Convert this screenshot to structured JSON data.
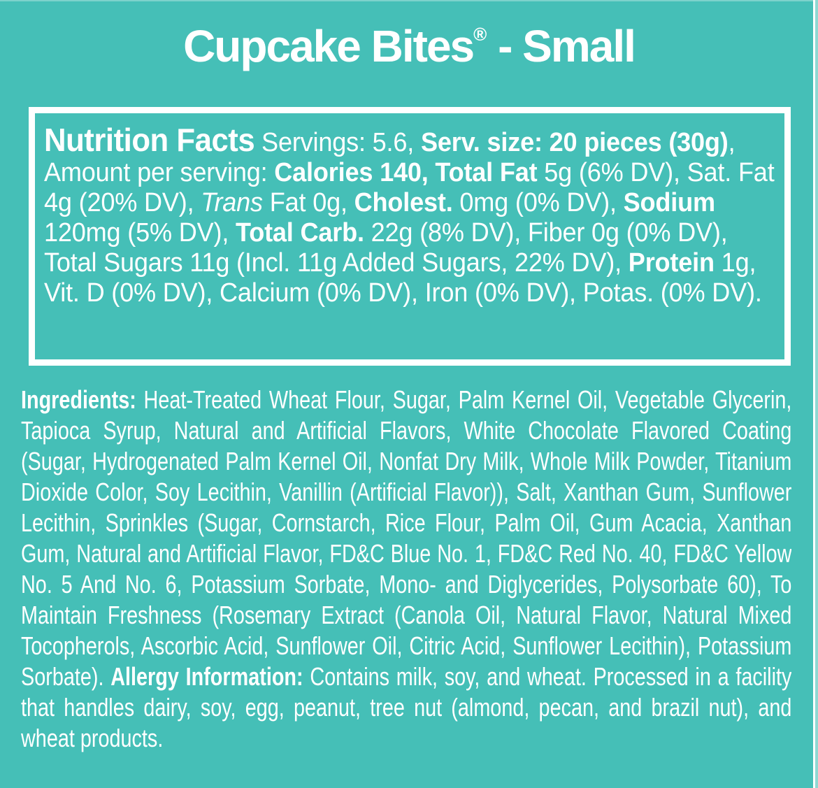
{
  "colors": {
    "background": "#45BFB7",
    "text": "#FFFFFF",
    "edge-sliver": "#8FD8D2"
  },
  "title": {
    "name": "Cupcake Bites",
    "registered_mark": "®",
    "suffix": " - Small"
  },
  "nutrition_facts": {
    "runs": [
      {
        "text": "Nutrition Facts",
        "style": "heading"
      },
      {
        "text": " Servings: 5.6, ",
        "style": "regular"
      },
      {
        "text": "Serv. size: 20 pieces (30g)",
        "style": "bold"
      },
      {
        "text": ", Amount per serving: ",
        "style": "regular"
      },
      {
        "text": "Calories 140, Total Fat",
        "style": "bold"
      },
      {
        "text": " 5g (6% DV), Sat. Fat 4g (20% DV), ",
        "style": "regular"
      },
      {
        "text": "Trans",
        "style": "italic"
      },
      {
        "text": " Fat 0g, ",
        "style": "regular"
      },
      {
        "text": "Cholest.",
        "style": "bold"
      },
      {
        "text": " 0mg (0% DV), ",
        "style": "regular"
      },
      {
        "text": "Sodium",
        "style": "bold"
      },
      {
        "text": " 120mg (5% DV), ",
        "style": "regular"
      },
      {
        "text": "Total Carb.",
        "style": "bold"
      },
      {
        "text": " 22g (8% DV), Fiber 0g (0% DV), Total Sugars 11g (Incl. 11g Added Sugars, 22% DV), ",
        "style": "regular"
      },
      {
        "text": "Protein",
        "style": "bold"
      },
      {
        "text": " 1g, Vit. D (0% DV), Calcium (0% DV), Iron (0% DV), Potas. (0% DV).",
        "style": "regular"
      }
    ]
  },
  "ingredients": {
    "runs": [
      {
        "text": "Ingredients:",
        "style": "bold"
      },
      {
        "text": " Heat-Treated Wheat Flour, Sugar, Palm Kernel Oil, Vegetable Glycerin, Tapioca Syrup, Natural and Artificial Flavors, White Chocolate Flavored Coating (Sugar, Hydrogenated Palm Kernel Oil, Nonfat Dry Milk, Whole Milk Powder, Titanium Dioxide Color, Soy Lecithin, Vanillin (Artificial Flavor)), Salt, Xanthan Gum, Sunflower Lecithin, Sprinkles (Sugar, Cornstarch, Rice Flour, Palm Oil, Gum Acacia, Xanthan Gum, Natural and Artificial Flavor, FD&C Blue No. 1, FD&C Red No. 40, FD&C Yellow No. 5 And No. 6, Potassium Sorbate, Mono- and Diglycerides, Polysorbate 60), To Maintain Freshness (Rosemary Extract (Canola Oil, Natural Flavor, Natural Mixed Tocopherols, Ascorbic Acid, Sunflower Oil, Citric Acid, Sunflower Lecithin), Potassium Sorbate). ",
        "style": "regular"
      },
      {
        "text": "Allergy Information:",
        "style": "bold"
      },
      {
        "text": " Contains milk, soy, and wheat. Processed in a facility that handles dairy, soy, egg, peanut, tree nut (almond, pecan, and brazil nut), and wheat products.",
        "style": "regular"
      }
    ]
  }
}
